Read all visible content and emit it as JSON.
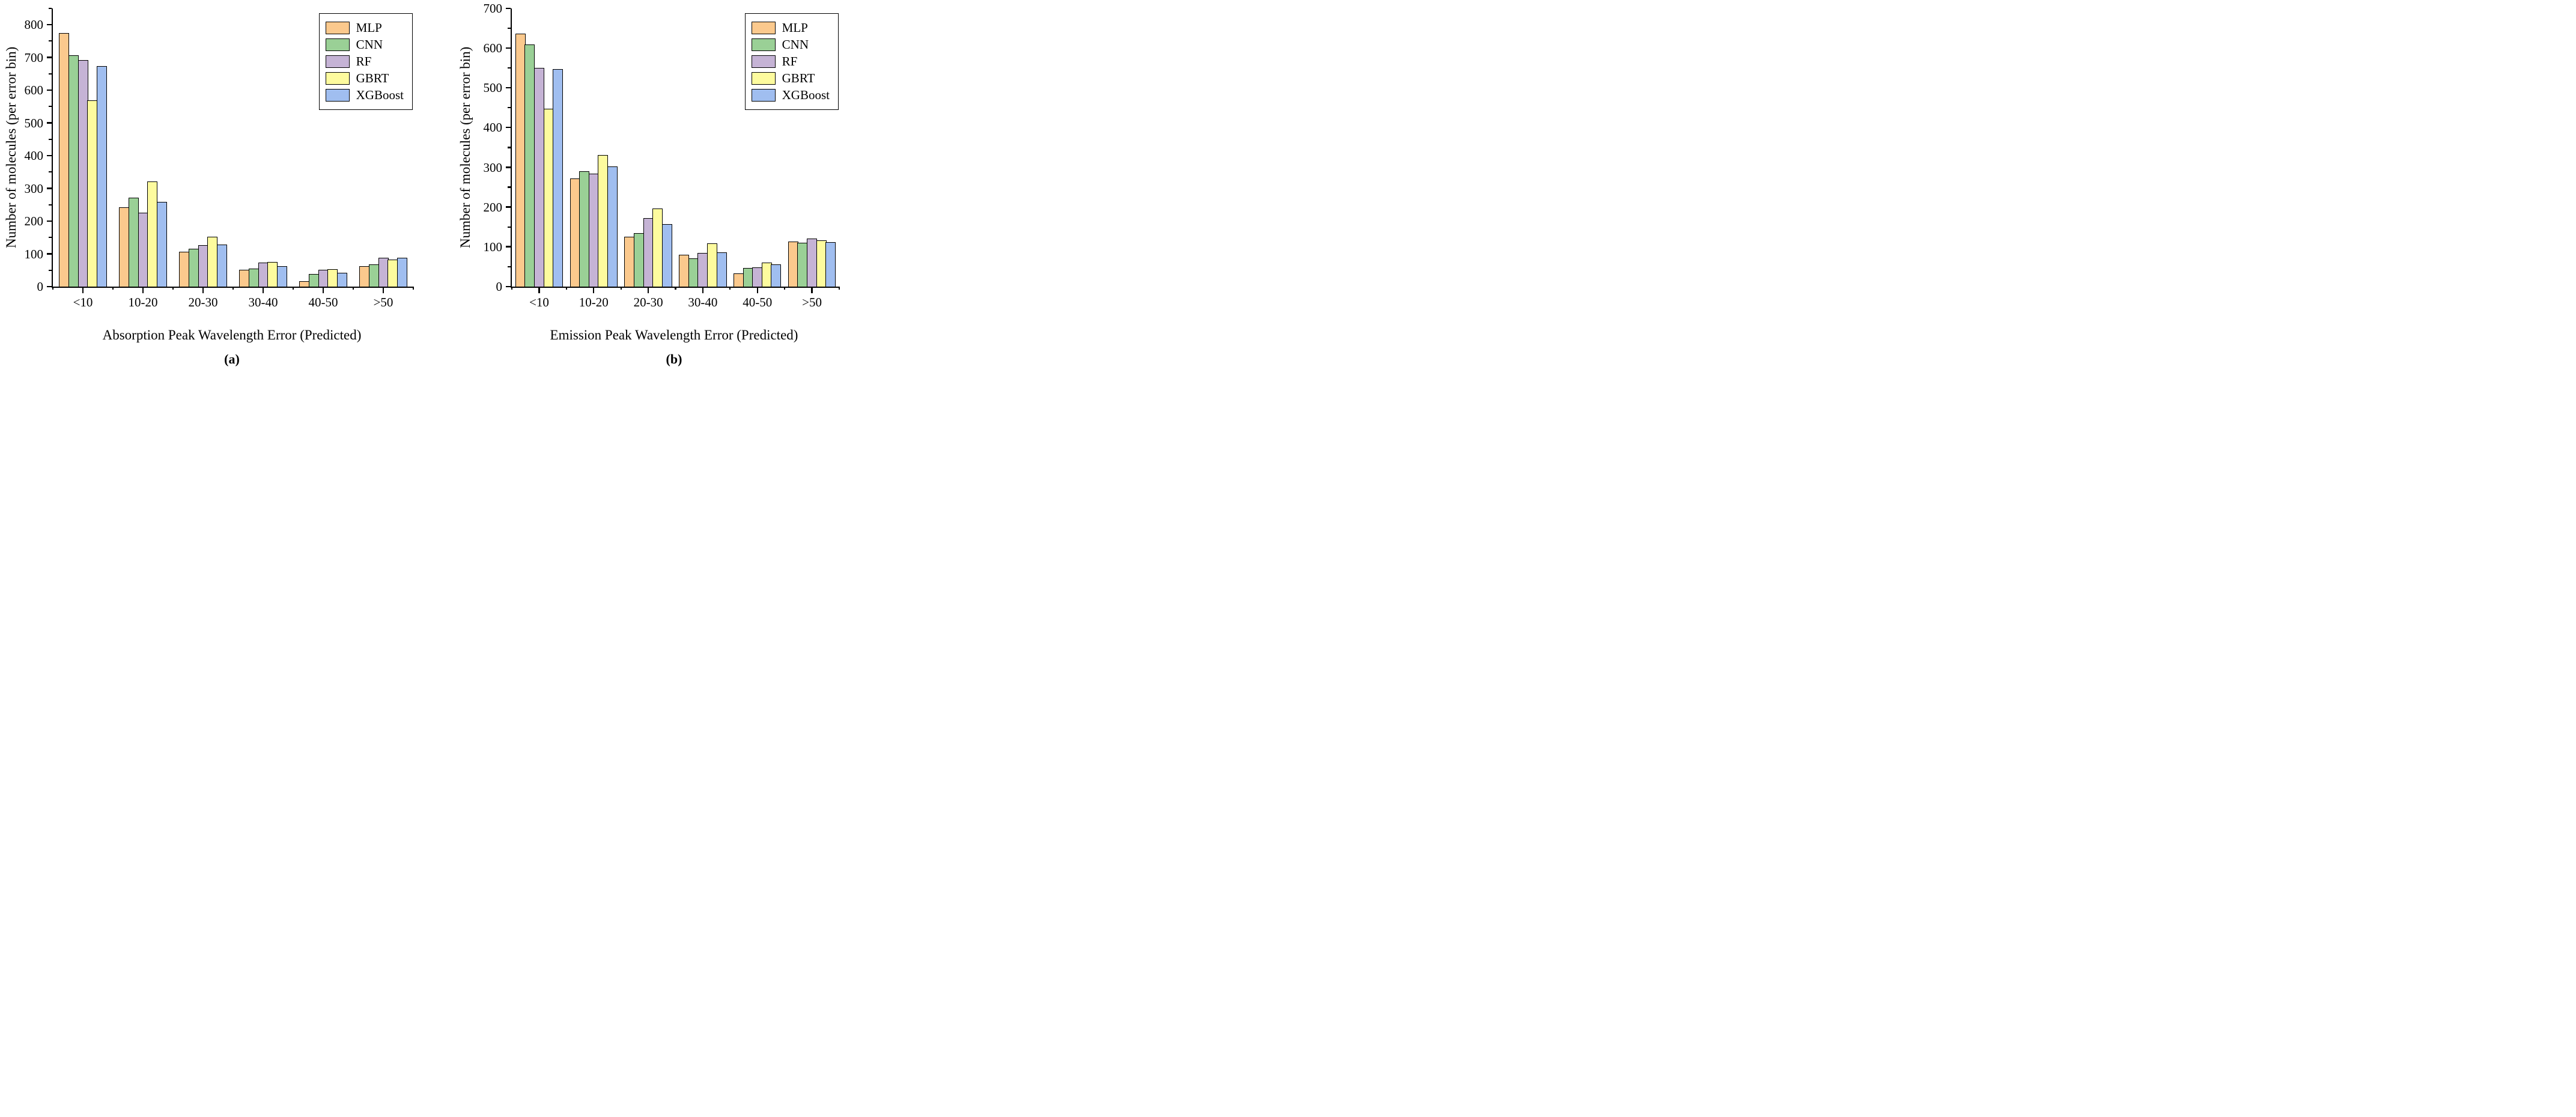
{
  "page": {
    "background": "#ffffff"
  },
  "legend": {
    "items": [
      {
        "label": "MLP",
        "color": "#FBC98D"
      },
      {
        "label": "CNN",
        "color": "#9AD096"
      },
      {
        "label": "RF",
        "color": "#C5B3D5"
      },
      {
        "label": "GBRT",
        "color": "#FDFB9E"
      },
      {
        "label": "XGBoost",
        "color": "#A0BEF0"
      }
    ],
    "position": "top-right-inside"
  },
  "chart_data": [
    {
      "type": "bar",
      "caption": "(a)",
      "xlabel": "Absorption Peak Wavelength Error (Predicted)",
      "ylabel": "Number of molecules (per error bin)",
      "categories": [
        "<10",
        "10-20",
        "20-30",
        "30-40",
        "40-50",
        ">50"
      ],
      "series": [
        {
          "name": "MLP",
          "values": [
            775,
            242,
            106,
            52,
            17,
            62
          ]
        },
        {
          "name": "CNN",
          "values": [
            707,
            272,
            115,
            55,
            38,
            68
          ]
        },
        {
          "name": "RF",
          "values": [
            693,
            226,
            126,
            73,
            51,
            89
          ]
        },
        {
          "name": "GBRT",
          "values": [
            570,
            321,
            152,
            76,
            54,
            82
          ]
        },
        {
          "name": "XGBoost",
          "values": [
            674,
            259,
            128,
            62,
            43,
            89
          ]
        }
      ],
      "ylim": [
        0,
        850
      ],
      "ytick_max": 800,
      "ytick_step": 100,
      "yminor_step": 50,
      "grid": false,
      "legend_position": "top-right"
    },
    {
      "type": "bar",
      "caption": "(b)",
      "xlabel": "Emission Peak Wavelength Error (Predicted)",
      "ylabel": "Number of molecules (per error bin)",
      "categories": [
        "<10",
        "10-20",
        "20-30",
        "30-40",
        "40-50",
        ">50"
      ],
      "series": [
        {
          "name": "MLP",
          "values": [
            636,
            272,
            126,
            80,
            34,
            114
          ]
        },
        {
          "name": "CNN",
          "values": [
            609,
            291,
            134,
            71,
            47,
            110
          ]
        },
        {
          "name": "RF",
          "values": [
            550,
            284,
            173,
            84,
            49,
            121
          ]
        },
        {
          "name": "GBRT",
          "values": [
            448,
            331,
            197,
            109,
            60,
            116
          ]
        },
        {
          "name": "XGBoost",
          "values": [
            547,
            303,
            157,
            86,
            56,
            112
          ]
        }
      ],
      "ylim": [
        0,
        700
      ],
      "ytick_max": 700,
      "ytick_step": 100,
      "yminor_step": 50,
      "grid": false,
      "legend_position": "top-right"
    }
  ]
}
